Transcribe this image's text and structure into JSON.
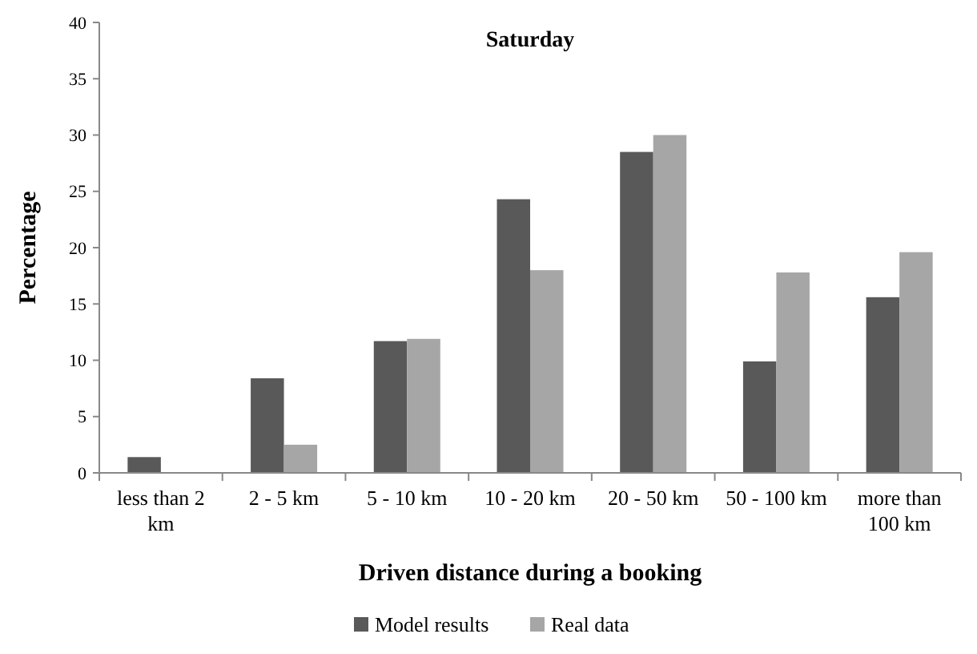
{
  "chart_data": {
    "type": "bar",
    "title": "Saturday",
    "xlabel": "Driven distance during a booking",
    "ylabel": "Percentage",
    "categories": [
      "less than 2 km",
      "2 - 5 km",
      "5 - 10 km",
      "10 - 20 km",
      "20 - 50 km",
      "50 - 100 km",
      "more than 100 km"
    ],
    "series": [
      {
        "name": "Model results",
        "color": "#595959",
        "values": [
          1.4,
          8.4,
          11.7,
          24.3,
          28.5,
          9.9,
          15.6
        ]
      },
      {
        "name": "Real data",
        "color": "#a6a6a6",
        "values": [
          0,
          2.5,
          11.9,
          18.0,
          30.0,
          17.8,
          19.6
        ]
      }
    ],
    "ylim": [
      0,
      40
    ],
    "yticks": [
      0,
      5,
      10,
      15,
      20,
      25,
      30,
      35,
      40
    ],
    "grid": false,
    "legend": "bottom"
  }
}
